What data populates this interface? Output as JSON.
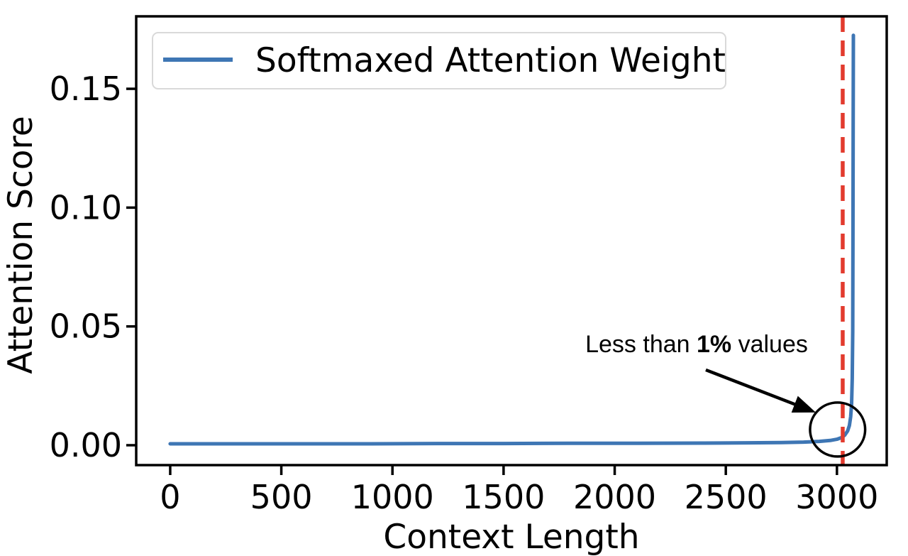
{
  "figure": {
    "background": "#ffffff"
  },
  "chart_data": {
    "type": "line",
    "title": "",
    "xlabel": "Context Length",
    "ylabel": "Attention Score",
    "xlim": [
      -153,
      3224
    ],
    "ylim": [
      -0.00837,
      0.1805
    ],
    "xticks": [
      0,
      500,
      1000,
      1500,
      2000,
      2500,
      3000
    ],
    "xtick_labels": [
      "0",
      "500",
      "1000",
      "1500",
      "2000",
      "2500",
      "3000"
    ],
    "yticks": [
      0.0,
      0.05,
      0.1,
      0.15
    ],
    "ytick_labels": [
      "0.00",
      "0.05",
      "0.10",
      "0.15"
    ],
    "grid": false,
    "axis_color": "#000000",
    "legend": {
      "position": "upper left",
      "entries": [
        {
          "label": "Softmaxed Attention Weight",
          "color": "#3e76b4"
        }
      ]
    },
    "series": [
      {
        "name": "Softmaxed Attention Weight",
        "color": "#3e76b4",
        "line_width": 5,
        "points": [
          [
            0,
            0.0006
          ],
          [
            300,
            0.0006
          ],
          [
            600,
            0.0006
          ],
          [
            900,
            0.0006
          ],
          [
            1200,
            0.0007
          ],
          [
            1500,
            0.0007
          ],
          [
            1800,
            0.0008
          ],
          [
            2100,
            0.0008
          ],
          [
            2400,
            0.0009
          ],
          [
            2600,
            0.001
          ],
          [
            2750,
            0.0011
          ],
          [
            2850,
            0.0013
          ],
          [
            2920,
            0.0016
          ],
          [
            2970,
            0.002
          ],
          [
            3000,
            0.0025
          ],
          [
            3020,
            0.0032
          ],
          [
            3035,
            0.0042
          ],
          [
            3048,
            0.006
          ],
          [
            3056,
            0.0083
          ],
          [
            3062,
            0.012
          ],
          [
            3066,
            0.0175
          ],
          [
            3069,
            0.028
          ],
          [
            3071,
            0.048
          ],
          [
            3072,
            0.085
          ],
          [
            3073,
            0.135
          ],
          [
            3074,
            0.1725
          ]
        ]
      }
    ],
    "vline": {
      "x": 3026,
      "color": "#e23b2e",
      "line_width": 5.5,
      "dash": [
        22,
        12
      ]
    },
    "annotation": {
      "prefix": "Less than ",
      "bold": "1%",
      "suffix": " values",
      "color": "#000000",
      "text_at": [
        2368,
        0.043
      ],
      "arrow_tail": [
        2410,
        0.0317
      ],
      "arrow_tip": [
        2905,
        0.0138
      ],
      "ellipse_center": [
        3003,
        0.0066
      ],
      "ellipse_rx": 124,
      "ellipse_ry": 0.01136
    }
  }
}
